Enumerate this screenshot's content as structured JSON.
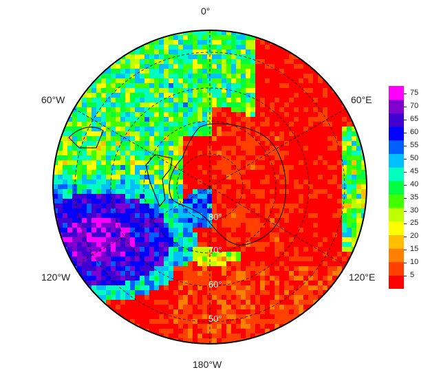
{
  "map": {
    "projection": "south-polar-stereographic",
    "longitude_labels": {
      "top": "0°",
      "bottom": "180°W",
      "upper_left": "60°W",
      "upper_right": "60°E",
      "lower_left": "120°W",
      "lower_right": "120°E"
    },
    "latitude_labels": [
      "80°",
      "70°",
      "60°",
      "50°"
    ],
    "colors": {
      "background_field": "#ff2a00",
      "coast": "#000000",
      "grid": "#000000",
      "latitude_text": "#ffffff"
    }
  },
  "colorbar": {
    "ticks": [
      "75",
      "70",
      "65",
      "60",
      "55",
      "50",
      "45",
      "40",
      "35",
      "30",
      "25",
      "20",
      "15",
      "10",
      "5"
    ],
    "min": 0,
    "max": 78,
    "palette": [
      "#ff0000",
      "#ff4000",
      "#ff8000",
      "#ffbf00",
      "#ffff00",
      "#bfff00",
      "#40ff00",
      "#00ff40",
      "#00ffbf",
      "#00bfff",
      "#0060ff",
      "#0000ff",
      "#4000d0",
      "#8000d0",
      "#ff00ff"
    ]
  }
}
